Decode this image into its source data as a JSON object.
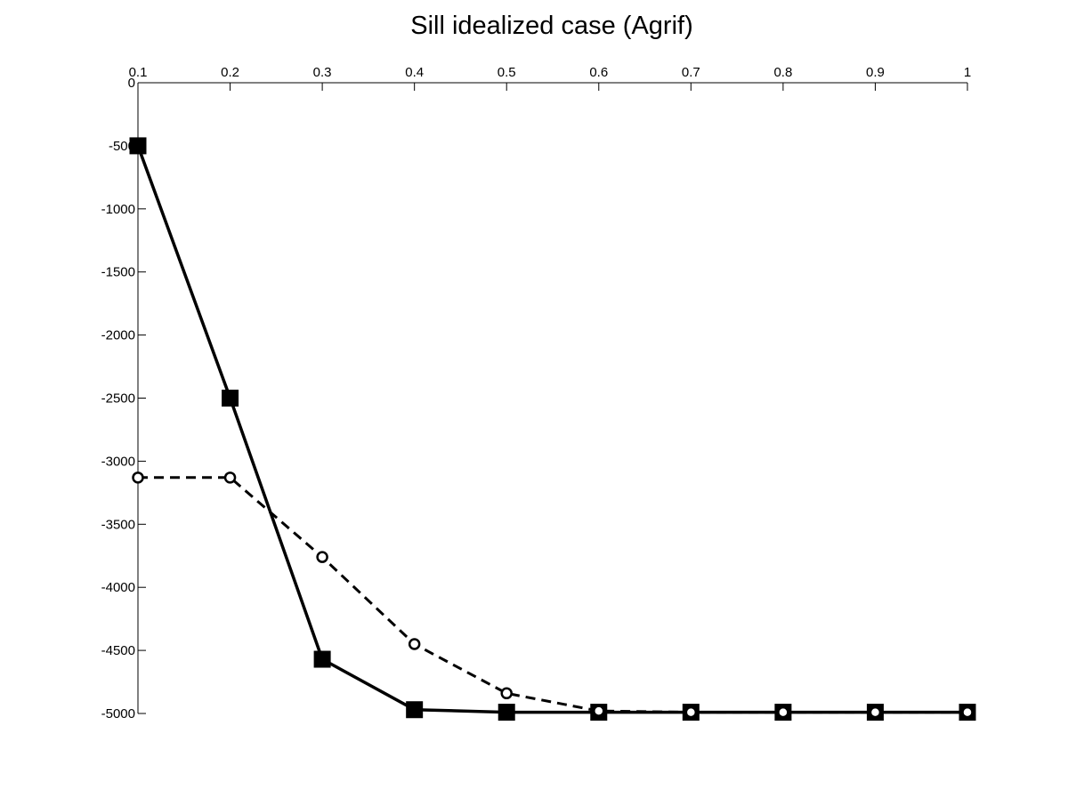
{
  "chart_data": {
    "type": "line",
    "title": "Sill idealized case (Agrif)",
    "xlabel": "",
    "ylabel": "",
    "x_axis_location": "top",
    "y_axis_direction": "normal",
    "xlim": [
      0.1,
      1
    ],
    "ylim": [
      -5000,
      0
    ],
    "x_ticks": [
      "0.1",
      "0.2",
      "0.3",
      "0.4",
      "0.5",
      "0.6",
      "0.7",
      "0.8",
      "0.9",
      "1"
    ],
    "y_ticks": [
      "0",
      "-500",
      "-1000",
      "-1500",
      "-2000",
      "-2500",
      "-3000",
      "-3500",
      "-4000",
      "-4500",
      "-5000"
    ],
    "grid": false,
    "legend": "none",
    "x": [
      0.1,
      0.2,
      0.3,
      0.4,
      0.5,
      0.6,
      0.7,
      0.8,
      0.9,
      1.0
    ],
    "series": [
      {
        "line_style": "solid",
        "marker": "square",
        "color": "#000000",
        "values": [
          -500,
          -2500,
          -4570,
          -4970,
          -4990,
          -4990,
          -4990,
          -4990,
          -4990,
          -4990
        ]
      },
      {
        "line_style": "dashed",
        "marker": "circle",
        "color": "#000000",
        "values": [
          -3130,
          -3130,
          -3760,
          -4450,
          -4840,
          -4980,
          -4990,
          -4990,
          -4990,
          -4990
        ]
      }
    ]
  }
}
